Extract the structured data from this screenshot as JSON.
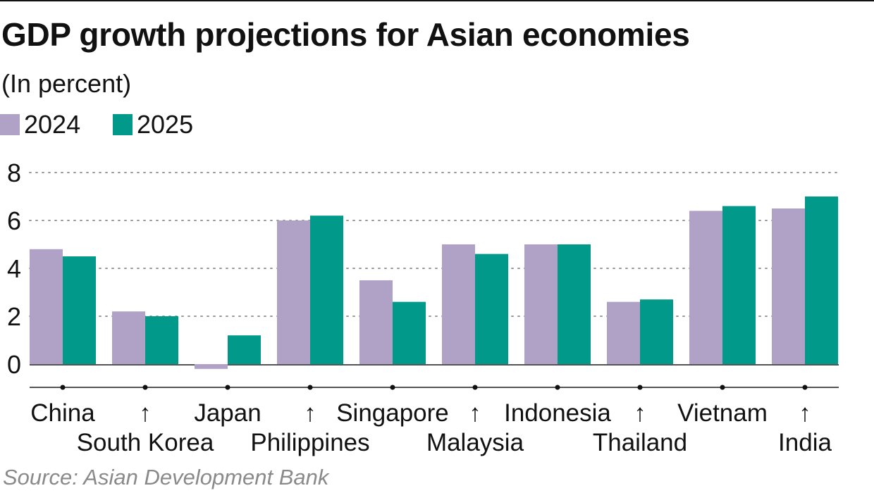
{
  "chart_data": {
    "type": "bar",
    "title": "GDP growth projections for Asian economies",
    "subtitle": "(In percent)",
    "categories": [
      "China",
      "South Korea",
      "Japan",
      "Philippines",
      "Singapore",
      "Malaysia",
      "Indonesia",
      "Thailand",
      "Vietnam",
      "India"
    ],
    "category_rows": [
      "top",
      "bottom",
      "top",
      "bottom",
      "top",
      "bottom",
      "top",
      "bottom",
      "top",
      "bottom"
    ],
    "arrow_glyph": "↑",
    "series": [
      {
        "name": "2024",
        "color": "#b0a2c6",
        "values": [
          4.8,
          2.2,
          -0.2,
          6.0,
          3.5,
          5.0,
          5.0,
          2.6,
          6.4,
          6.5
        ]
      },
      {
        "name": "2025",
        "color": "#00998a",
        "values": [
          4.5,
          2.0,
          1.2,
          6.2,
          2.6,
          4.6,
          5.0,
          2.7,
          6.6,
          7.0
        ]
      }
    ],
    "y_ticks": [
      0,
      2,
      4,
      6,
      8
    ],
    "ylim": [
      -1,
      8
    ],
    "grid": true,
    "grid_style": "dotted",
    "legend_position": "top-left",
    "source": "Source: Asian Development Bank"
  }
}
